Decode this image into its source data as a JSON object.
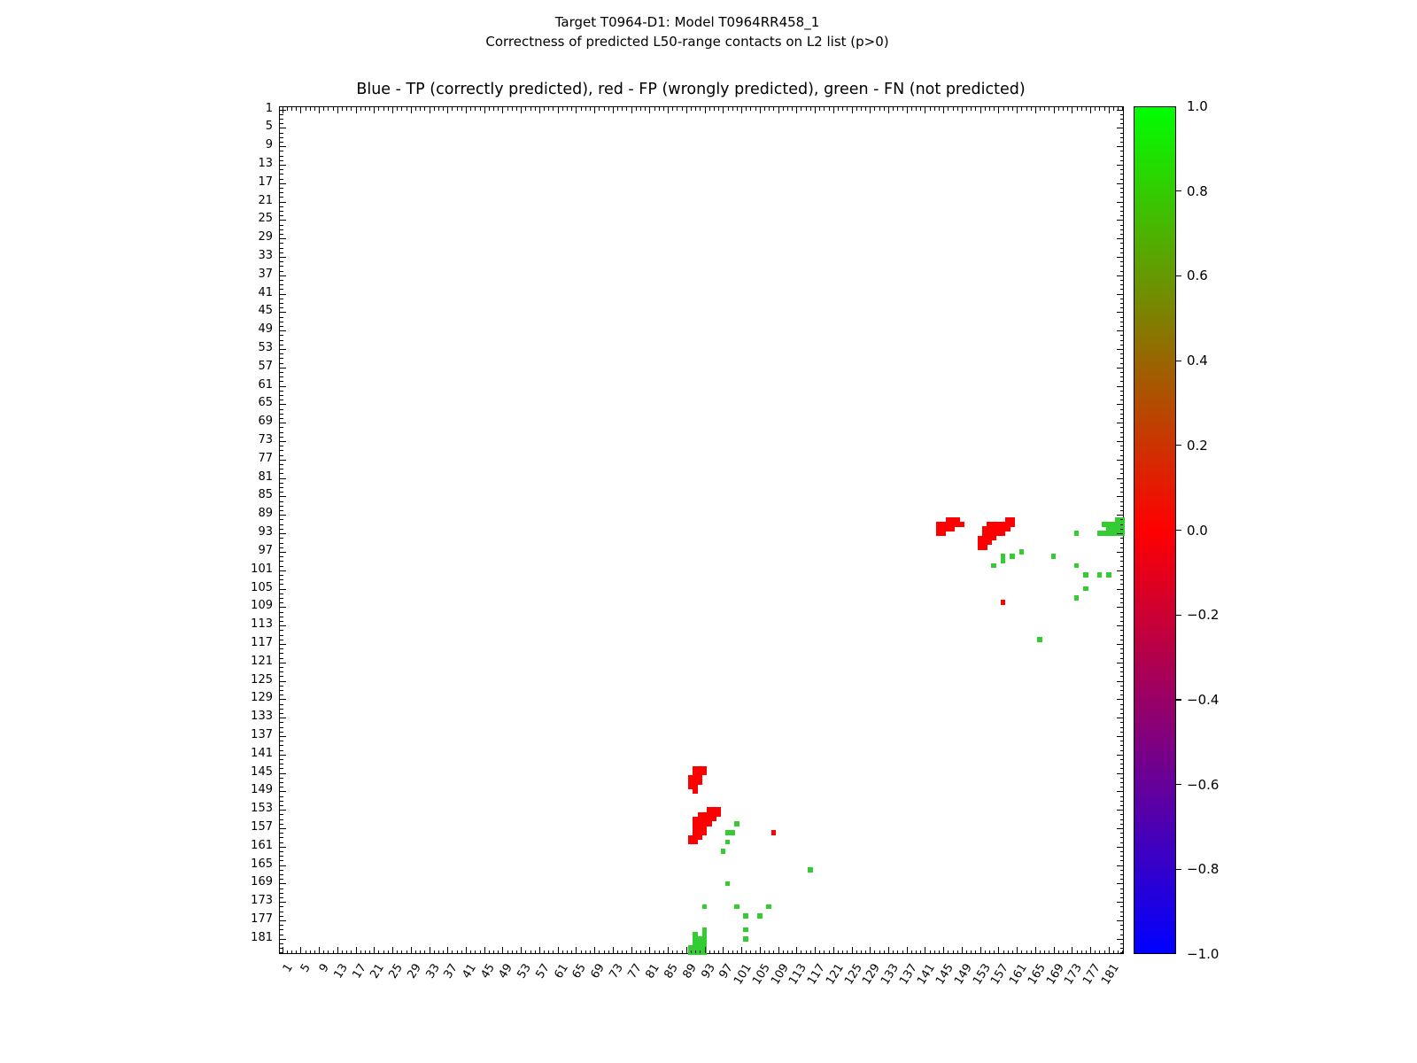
{
  "header": {
    "suptitle_line1": "Target T0964-D1: Model T0964RR458_1",
    "suptitle_line2": "Correctness of predicted L50-range contacts on L2 list (p>0)",
    "axes_title": "Blue - TP (correctly predicted), red - FP (wrongly predicted), green - FN (not predicted)"
  },
  "chart_data": {
    "type": "heatmap",
    "title": "Blue - TP (correctly predicted), red - FP (wrongly predicted), green - FN (not predicted)",
    "x_axis": {
      "range": [
        0.5,
        184.5
      ],
      "tick_labels": [
        1,
        5,
        9,
        13,
        17,
        21,
        25,
        29,
        33,
        37,
        41,
        45,
        49,
        53,
        57,
        61,
        65,
        69,
        73,
        77,
        81,
        85,
        89,
        93,
        97,
        101,
        105,
        109,
        113,
        117,
        121,
        125,
        129,
        133,
        137,
        141,
        145,
        149,
        153,
        157,
        161,
        165,
        169,
        173,
        177,
        181
      ],
      "minor_tick_every": 1,
      "label_rotation_deg": 58
    },
    "y_axis": {
      "range": [
        0.5,
        184.5
      ],
      "inverted": true,
      "tick_labels": [
        1,
        5,
        9,
        13,
        17,
        21,
        25,
        29,
        33,
        37,
        41,
        45,
        49,
        53,
        57,
        61,
        65,
        69,
        73,
        77,
        81,
        85,
        89,
        93,
        97,
        101,
        105,
        109,
        113,
        117,
        121,
        125,
        129,
        133,
        137,
        141,
        145,
        149,
        153,
        157,
        161,
        165,
        169,
        173,
        177,
        181
      ],
      "minor_tick_every": 1
    },
    "colorbar": {
      "min": -1.0,
      "max": 1.0,
      "tick_labels": [
        "1.0",
        "0.8",
        "0.6",
        "0.4",
        "0.2",
        "0.0",
        "−0.2",
        "−0.4",
        "−0.6",
        "−0.8",
        "−1.0"
      ],
      "colormap": "brg",
      "gradient_stops": [
        {
          "value": 1.0,
          "color": "#00ff00"
        },
        {
          "value": 0.0,
          "color": "#ff0000"
        },
        {
          "value": -1.0,
          "color": "#0000ff"
        }
      ]
    },
    "legend": {
      "tp_color": "#0000ff",
      "fp_color": "#ff0000",
      "fn_color": "#33cc33"
    },
    "symmetric": true,
    "grid": false,
    "tp_cells": [],
    "fp_cells": [
      [
        90,
        146
      ],
      [
        90,
        147
      ],
      [
        90,
        148
      ],
      [
        91,
        144
      ],
      [
        91,
        145
      ],
      [
        91,
        146
      ],
      [
        91,
        147
      ],
      [
        91,
        148
      ],
      [
        91,
        149
      ],
      [
        92,
        144
      ],
      [
        92,
        145
      ],
      [
        92,
        146
      ],
      [
        92,
        147
      ],
      [
        93,
        144
      ],
      [
        93,
        145
      ],
      [
        90,
        159
      ],
      [
        90,
        160
      ],
      [
        91,
        155
      ],
      [
        91,
        156
      ],
      [
        91,
        157
      ],
      [
        91,
        158
      ],
      [
        91,
        159
      ],
      [
        91,
        160
      ],
      [
        92,
        154
      ],
      [
        92,
        155
      ],
      [
        92,
        156
      ],
      [
        92,
        157
      ],
      [
        92,
        158
      ],
      [
        92,
        159
      ],
      [
        93,
        154
      ],
      [
        93,
        155
      ],
      [
        93,
        156
      ],
      [
        93,
        157
      ],
      [
        93,
        158
      ],
      [
        94,
        153
      ],
      [
        94,
        154
      ],
      [
        94,
        155
      ],
      [
        94,
        156
      ],
      [
        95,
        153
      ],
      [
        95,
        154
      ],
      [
        95,
        155
      ],
      [
        96,
        153
      ],
      [
        96,
        154
      ],
      [
        108,
        158
      ]
    ],
    "fn_cells": [
      [
        90,
        183
      ],
      [
        90,
        184
      ],
      [
        91,
        180
      ],
      [
        91,
        181
      ],
      [
        91,
        182
      ],
      [
        91,
        183
      ],
      [
        91,
        184
      ],
      [
        92,
        181
      ],
      [
        92,
        182
      ],
      [
        92,
        183
      ],
      [
        92,
        184
      ],
      [
        93,
        179
      ],
      [
        93,
        180
      ],
      [
        93,
        181
      ],
      [
        93,
        182
      ],
      [
        93,
        183
      ],
      [
        93,
        184
      ],
      [
        93,
        174
      ],
      [
        97,
        162
      ],
      [
        98,
        158
      ],
      [
        99,
        158
      ],
      [
        98,
        160
      ],
      [
        98,
        169
      ],
      [
        100,
        156
      ],
      [
        100,
        174
      ],
      [
        102,
        176
      ],
      [
        102,
        179
      ],
      [
        102,
        181
      ],
      [
        105,
        176
      ],
      [
        107,
        174
      ],
      [
        116,
        166
      ]
    ]
  }
}
